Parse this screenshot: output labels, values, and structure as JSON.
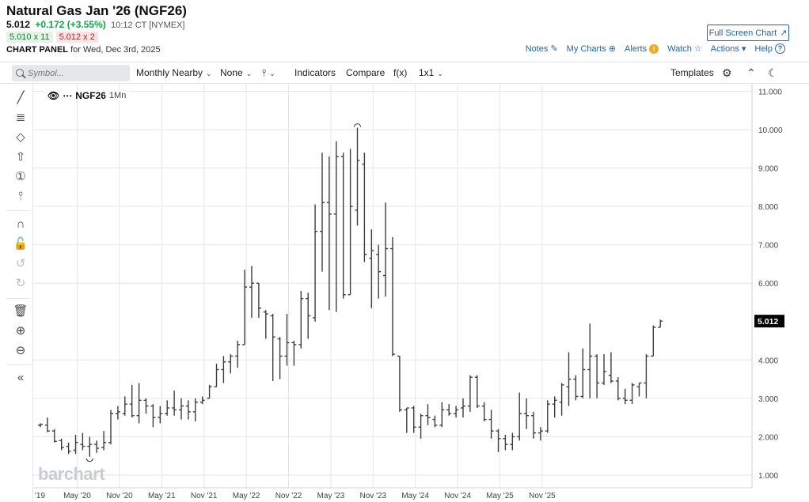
{
  "header": {
    "title": "Natural Gas Jan '26 (NGF26)",
    "last": "5.012",
    "change": "+0.172 (+3.55%)",
    "time": "10:12 CT [NYMEX]",
    "bid": "5.010 x 11",
    "ask": "5.012 x 2",
    "panel_label": "CHART PANEL",
    "panel_date": "for Wed, Dec 3rd, 2025",
    "fullscreen_label": "Full Screen Chart",
    "links": {
      "notes": "Notes",
      "mycharts": "My Charts",
      "alerts": "Alerts",
      "watch": "Watch",
      "actions": "Actions",
      "help": "Help"
    }
  },
  "toolbar": {
    "symbol_placeholder": "Symbol...",
    "nearby": "Monthly Nearby",
    "none": "None",
    "indicators": "Indicators",
    "compare": "Compare",
    "fx": "f(x)",
    "layout": "1x1",
    "templates": "Templates"
  },
  "legend": {
    "symbol": "NGF26",
    "interval": "1Mn"
  },
  "watermark": "barchart",
  "colors": {
    "bar": "#3d3d3d",
    "grid": "#e6e6e6",
    "last_bg": "#000000",
    "accent": "#2563a8",
    "up": "#16a34a"
  },
  "chart_data": {
    "type": "ohlc",
    "title": "Natural Gas Jan '26 (NGF26)",
    "xlabel": "",
    "ylabel": "",
    "ylim": [
      0.7,
      11.0
    ],
    "yticks": [
      "11.000",
      "10.000",
      "9.000",
      "8.000",
      "7.000",
      "6.000",
      "4.000",
      "3.000",
      "2.000",
      "1.000"
    ],
    "xticks": [
      "'19",
      "May '20",
      "Nov '20",
      "May '21",
      "Nov '21",
      "May '22",
      "Nov '22",
      "May '23",
      "Nov '23",
      "May '24",
      "Nov '24",
      "May '25",
      "Nov '25"
    ],
    "last_value": "5.012",
    "grid": true,
    "bars": [
      {
        "d": "2019-12",
        "o": 2.3,
        "h": 2.35,
        "l": 2.25,
        "c": 2.32
      },
      {
        "d": "2020-01",
        "o": 2.3,
        "h": 2.5,
        "l": 2.12,
        "c": 2.15
      },
      {
        "d": "2020-02",
        "o": 2.15,
        "h": 2.2,
        "l": 1.85,
        "c": 1.88
      },
      {
        "d": "2020-03",
        "o": 1.9,
        "h": 1.95,
        "l": 1.65,
        "c": 1.72
      },
      {
        "d": "2020-04",
        "o": 1.75,
        "h": 1.85,
        "l": 1.55,
        "c": 1.62
      },
      {
        "d": "2020-05",
        "o": 1.65,
        "h": 2.05,
        "l": 1.55,
        "c": 1.85
      },
      {
        "d": "2020-06",
        "o": 1.8,
        "h": 2.1,
        "l": 1.65,
        "c": 1.75
      },
      {
        "d": "2020-07",
        "o": 1.75,
        "h": 2.0,
        "l": 1.48,
        "c": 1.8
      },
      {
        "d": "2020-08",
        "o": 1.8,
        "h": 1.9,
        "l": 1.58,
        "c": 1.7
      },
      {
        "d": "2020-09",
        "o": 1.72,
        "h": 2.15,
        "l": 1.65,
        "c": 1.85
      },
      {
        "d": "2020-10",
        "o": 1.85,
        "h": 2.7,
        "l": 1.8,
        "c": 2.6
      },
      {
        "d": "2020-11",
        "o": 2.6,
        "h": 2.8,
        "l": 2.45,
        "c": 2.65
      },
      {
        "d": "2020-12",
        "o": 2.6,
        "h": 3.05,
        "l": 2.55,
        "c": 2.85
      },
      {
        "d": "2021-01",
        "o": 2.85,
        "h": 3.35,
        "l": 2.5,
        "c": 2.55
      },
      {
        "d": "2021-02",
        "o": 2.55,
        "h": 3.4,
        "l": 2.35,
        "c": 2.95
      },
      {
        "d": "2021-03",
        "o": 2.95,
        "h": 3.0,
        "l": 2.6,
        "c": 2.8
      },
      {
        "d": "2021-04",
        "o": 2.8,
        "h": 2.85,
        "l": 2.25,
        "c": 2.5
      },
      {
        "d": "2021-05",
        "o": 2.5,
        "h": 2.8,
        "l": 2.35,
        "c": 2.6
      },
      {
        "d": "2021-06",
        "o": 2.6,
        "h": 2.95,
        "l": 2.55,
        "c": 2.75
      },
      {
        "d": "2021-07",
        "o": 2.75,
        "h": 3.2,
        "l": 2.55,
        "c": 2.7
      },
      {
        "d": "2021-08",
        "o": 2.7,
        "h": 3.0,
        "l": 2.45,
        "c": 2.8
      },
      {
        "d": "2021-09",
        "o": 2.8,
        "h": 2.95,
        "l": 2.45,
        "c": 2.65
      },
      {
        "d": "2021-10",
        "o": 2.65,
        "h": 3.0,
        "l": 2.4,
        "c": 2.9
      },
      {
        "d": "2021-11",
        "o": 2.9,
        "h": 3.05,
        "l": 2.85,
        "c": 2.95
      },
      {
        "d": "2021-12",
        "o": 3.0,
        "h": 3.35,
        "l": 3.0,
        "c": 3.3
      },
      {
        "d": "2022-01",
        "o": 3.3,
        "h": 3.9,
        "l": 3.3,
        "c": 3.75
      },
      {
        "d": "2022-02",
        "o": 3.75,
        "h": 4.1,
        "l": 3.4,
        "c": 3.95
      },
      {
        "d": "2022-03",
        "o": 3.95,
        "h": 4.15,
        "l": 3.65,
        "c": 4.1
      },
      {
        "d": "2022-04",
        "o": 4.1,
        "h": 4.5,
        "l": 3.8,
        "c": 4.4
      },
      {
        "d": "2022-05",
        "o": 4.4,
        "h": 6.35,
        "l": 4.4,
        "c": 5.9
      },
      {
        "d": "2022-06",
        "o": 5.9,
        "h": 6.45,
        "l": 5.1,
        "c": 6.0
      },
      {
        "d": "2022-07",
        "o": 6.0,
        "h": 6.0,
        "l": 5.1,
        "c": 5.35
      },
      {
        "d": "2022-08",
        "o": 5.25,
        "h": 5.3,
        "l": 4.55,
        "c": 5.2
      },
      {
        "d": "2022-09",
        "o": 5.15,
        "h": 5.2,
        "l": 3.45,
        "c": 4.6
      },
      {
        "d": "2022-10",
        "o": 4.55,
        "h": 4.6,
        "l": 3.5,
        "c": 4.1
      },
      {
        "d": "2022-11",
        "o": 4.1,
        "h": 5.2,
        "l": 3.85,
        "c": 4.45
      },
      {
        "d": "2022-12",
        "o": 4.45,
        "h": 4.5,
        "l": 3.85,
        "c": 4.4
      },
      {
        "d": "2023-01",
        "o": 4.4,
        "h": 5.8,
        "l": 4.3,
        "c": 5.6
      },
      {
        "d": "2023-02",
        "o": 5.6,
        "h": 5.75,
        "l": 4.55,
        "c": 5.15
      },
      {
        "d": "2023-03",
        "o": 5.1,
        "h": 8.05,
        "l": 5.0,
        "c": 7.35
      },
      {
        "d": "2023-04",
        "o": 7.35,
        "h": 9.4,
        "l": 6.3,
        "c": 8.1
      },
      {
        "d": "2023-05",
        "o": 8.1,
        "h": 9.3,
        "l": 5.3,
        "c": 7.8
      },
      {
        "d": "2023-06",
        "o": 7.8,
        "h": 9.7,
        "l": 5.25,
        "c": 9.3
      },
      {
        "d": "2023-07",
        "o": 9.3,
        "h": 9.4,
        "l": 5.6,
        "c": 5.7
      },
      {
        "d": "2023-08",
        "o": 5.7,
        "h": 9.5,
        "l": 5.7,
        "c": 8.0
      },
      {
        "d": "2023-09",
        "o": 7.9,
        "h": 10.05,
        "l": 7.5,
        "c": 9.2
      },
      {
        "d": "2023-10",
        "o": 9.1,
        "h": 9.4,
        "l": 6.55,
        "c": 6.75
      },
      {
        "d": "2023-11",
        "o": 6.65,
        "h": 7.4,
        "l": 5.35,
        "c": 6.85
      },
      {
        "d": "2023-12",
        "o": 6.75,
        "h": 7.0,
        "l": 5.6,
        "c": 6.3
      },
      {
        "d": "2024-01",
        "o": 6.2,
        "h": 8.1,
        "l": 5.65,
        "c": 6.9
      },
      {
        "d": "2024-02",
        "o": 6.9,
        "h": 7.2,
        "l": 4.1,
        "c": 4.15
      },
      {
        "d": "2024-03",
        "o": 4.1,
        "h": 4.1,
        "l": 2.65,
        "c": 2.7
      },
      {
        "d": "2024-04",
        "o": 2.7,
        "h": 2.75,
        "l": 2.1,
        "c": 2.75
      },
      {
        "d": "2024-05",
        "o": 2.75,
        "h": 2.8,
        "l": 2.1,
        "c": 2.25
      },
      {
        "d": "2024-06",
        "o": 2.25,
        "h": 2.6,
        "l": 1.95,
        "c": 2.55
      },
      {
        "d": "2024-07",
        "o": 2.55,
        "h": 2.85,
        "l": 2.3,
        "c": 2.5
      },
      {
        "d": "2024-08",
        "o": 2.45,
        "h": 2.55,
        "l": 2.25,
        "c": 2.3
      },
      {
        "d": "2024-09",
        "o": 2.3,
        "h": 2.9,
        "l": 2.25,
        "c": 2.7
      },
      {
        "d": "2024-10",
        "o": 2.7,
        "h": 2.85,
        "l": 2.55,
        "c": 2.6
      },
      {
        "d": "2024-11",
        "o": 2.6,
        "h": 2.8,
        "l": 2.5,
        "c": 2.7
      },
      {
        "d": "2024-12",
        "o": 2.75,
        "h": 3.0,
        "l": 2.5,
        "c": 2.8
      },
      {
        "d": "2025-01",
        "o": 2.8,
        "h": 3.6,
        "l": 2.65,
        "c": 3.55
      },
      {
        "d": "2025-02",
        "o": 3.55,
        "h": 3.6,
        "l": 2.75,
        "c": 2.8
      },
      {
        "d": "2025-03",
        "o": 2.8,
        "h": 2.9,
        "l": 2.4,
        "c": 2.45
      },
      {
        "d": "2025-04",
        "o": 2.45,
        "h": 2.7,
        "l": 1.95,
        "c": 2.15
      },
      {
        "d": "2025-05",
        "o": 2.15,
        "h": 2.2,
        "l": 1.6,
        "c": 1.95
      },
      {
        "d": "2025-06",
        "o": 1.95,
        "h": 2.05,
        "l": 1.65,
        "c": 1.8
      },
      {
        "d": "2025-07",
        "o": 1.8,
        "h": 2.1,
        "l": 1.65,
        "c": 2.0
      },
      {
        "d": "2025-08",
        "o": 2.0,
        "h": 3.15,
        "l": 1.9,
        "c": 2.6
      },
      {
        "d": "2025-09",
        "o": 2.6,
        "h": 3.0,
        "l": 2.2,
        "c": 2.55
      },
      {
        "d": "2025-10",
        "o": 2.55,
        "h": 2.65,
        "l": 1.95,
        "c": 2.1
      },
      {
        "d": "2025-11",
        "o": 2.1,
        "h": 2.25,
        "l": 1.9,
        "c": 2.15
      },
      {
        "d": "2025-12",
        "o": 2.15,
        "h": 2.95,
        "l": 2.1,
        "c": 2.85
      },
      {
        "d": "2026-01",
        "o": 2.85,
        "h": 3.05,
        "l": 2.5,
        "c": 2.95
      },
      {
        "d": "2026-02",
        "o": 2.9,
        "h": 3.4,
        "l": 2.55,
        "c": 3.35
      },
      {
        "d": "2026-03",
        "o": 3.3,
        "h": 4.2,
        "l": 2.8,
        "c": 3.5
      },
      {
        "d": "2026-04",
        "o": 3.5,
        "h": 3.6,
        "l": 2.95,
        "c": 3.05
      },
      {
        "d": "2026-05",
        "o": 3.05,
        "h": 4.3,
        "l": 3.0,
        "c": 3.75
      },
      {
        "d": "2026-06",
        "o": 3.75,
        "h": 4.95,
        "l": 3.0,
        "c": 4.1
      },
      {
        "d": "2026-07",
        "o": 4.1,
        "h": 4.15,
        "l": 3.0,
        "c": 3.4
      },
      {
        "d": "2026-08",
        "o": 3.4,
        "h": 4.15,
        "l": 3.35,
        "c": 3.7
      },
      {
        "d": "2026-09",
        "o": 3.6,
        "h": 4.2,
        "l": 3.4,
        "c": 3.45
      },
      {
        "d": "2026-10",
        "o": 3.45,
        "h": 3.55,
        "l": 2.95,
        "c": 3.0
      },
      {
        "d": "2026-11",
        "o": 3.0,
        "h": 3.25,
        "l": 2.85,
        "c": 2.95
      },
      {
        "d": "2026-12",
        "o": 2.95,
        "h": 3.4,
        "l": 2.85,
        "c": 3.35
      },
      {
        "d": "2027-01",
        "o": 3.3,
        "h": 3.4,
        "l": 3.05,
        "c": 3.4
      },
      {
        "d": "2027-02",
        "o": 3.4,
        "h": 4.15,
        "l": 3.0,
        "c": 4.1
      },
      {
        "d": "2027-03",
        "o": 4.1,
        "h": 4.9,
        "l": 4.1,
        "c": 4.85
      },
      {
        "d": "2027-04",
        "o": 4.85,
        "h": 5.05,
        "l": 4.85,
        "c": 5.012
      }
    ]
  }
}
